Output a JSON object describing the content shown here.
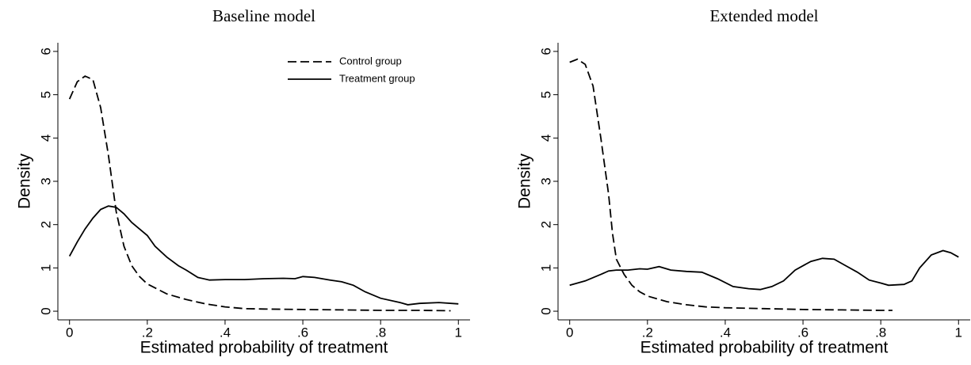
{
  "chart_data": [
    {
      "type": "line",
      "title": "Baseline model",
      "xlabel": "Estimated probability of treatment",
      "ylabel": "Density",
      "xlim": [
        -0.03,
        1.03
      ],
      "ylim": [
        -0.2,
        6.2
      ],
      "xticks": [
        0,
        {
          "value": 0.2,
          "label": ".2"
        },
        {
          "value": 0.4,
          "label": ".4"
        },
        {
          "value": 0.6,
          "label": ".6"
        },
        {
          "value": 0.8,
          "label": ".8"
        },
        1
      ],
      "yticks": [
        0,
        1,
        2,
        3,
        4,
        5,
        6
      ],
      "legend": "top-right",
      "series": [
        {
          "name": "Control group",
          "color": "#000000",
          "style": "dashed",
          "x": [
            0,
            0.02,
            0.04,
            0.06,
            0.08,
            0.1,
            0.12,
            0.14,
            0.16,
            0.18,
            0.2,
            0.25,
            0.3,
            0.35,
            0.4,
            0.45,
            0.5,
            0.6,
            0.7,
            0.8,
            0.9,
            0.98
          ],
          "values": [
            4.9,
            5.3,
            5.43,
            5.35,
            4.7,
            3.6,
            2.3,
            1.5,
            1.05,
            0.8,
            0.63,
            0.4,
            0.27,
            0.17,
            0.1,
            0.06,
            0.05,
            0.04,
            0.03,
            0.02,
            0.02,
            0.01
          ]
        },
        {
          "name": "Treatment group",
          "color": "#000000",
          "style": "solid",
          "x": [
            0,
            0.02,
            0.04,
            0.06,
            0.08,
            0.1,
            0.12,
            0.14,
            0.16,
            0.18,
            0.2,
            0.22,
            0.25,
            0.28,
            0.3,
            0.33,
            0.36,
            0.4,
            0.45,
            0.5,
            0.55,
            0.58,
            0.6,
            0.63,
            0.67,
            0.7,
            0.73,
            0.76,
            0.8,
            0.85,
            0.87,
            0.9,
            0.95,
            1.0
          ],
          "values": [
            1.27,
            1.6,
            1.9,
            2.15,
            2.35,
            2.43,
            2.4,
            2.25,
            2.05,
            1.9,
            1.75,
            1.5,
            1.25,
            1.05,
            0.95,
            0.78,
            0.72,
            0.73,
            0.73,
            0.75,
            0.76,
            0.75,
            0.8,
            0.78,
            0.72,
            0.68,
            0.6,
            0.45,
            0.3,
            0.2,
            0.15,
            0.18,
            0.2,
            0.17
          ]
        }
      ]
    },
    {
      "type": "line",
      "title": "Extended model",
      "xlabel": "Estimated probability of treatment",
      "ylabel": "Density",
      "xlim": [
        -0.03,
        1.03
      ],
      "ylim": [
        -0.2,
        6.2
      ],
      "xticks": [
        0,
        {
          "value": 0.2,
          "label": ".2"
        },
        {
          "value": 0.4,
          "label": ".4"
        },
        {
          "value": 0.6,
          "label": ".6"
        },
        {
          "value": 0.8,
          "label": ".8"
        },
        1
      ],
      "yticks": [
        0,
        1,
        2,
        3,
        4,
        5,
        6
      ],
      "series": [
        {
          "color": "#000000",
          "style": "dashed",
          "x": [
            0,
            0.02,
            0.04,
            0.06,
            0.08,
            0.1,
            0.11,
            0.12,
            0.14,
            0.16,
            0.18,
            0.2,
            0.25,
            0.3,
            0.35,
            0.4,
            0.5,
            0.6,
            0.7,
            0.8,
            0.83
          ],
          "values": [
            5.75,
            5.82,
            5.7,
            5.2,
            4.0,
            2.7,
            1.8,
            1.2,
            0.85,
            0.6,
            0.45,
            0.35,
            0.22,
            0.15,
            0.1,
            0.08,
            0.06,
            0.04,
            0.03,
            0.02,
            0.02
          ]
        },
        {
          "color": "#000000",
          "style": "solid",
          "x": [
            0,
            0.04,
            0.08,
            0.1,
            0.12,
            0.15,
            0.18,
            0.2,
            0.23,
            0.26,
            0.3,
            0.34,
            0.38,
            0.42,
            0.46,
            0.49,
            0.52,
            0.55,
            0.58,
            0.62,
            0.65,
            0.68,
            0.71,
            0.74,
            0.77,
            0.8,
            0.82,
            0.86,
            0.88,
            0.9,
            0.93,
            0.96,
            0.98,
            1.0
          ],
          "values": [
            0.6,
            0.7,
            0.85,
            0.93,
            0.95,
            0.95,
            0.98,
            0.97,
            1.03,
            0.95,
            0.92,
            0.9,
            0.75,
            0.57,
            0.52,
            0.5,
            0.57,
            0.7,
            0.95,
            1.15,
            1.22,
            1.2,
            1.05,
            0.9,
            0.72,
            0.65,
            0.6,
            0.62,
            0.7,
            1.0,
            1.3,
            1.4,
            1.35,
            1.25
          ]
        }
      ]
    }
  ]
}
